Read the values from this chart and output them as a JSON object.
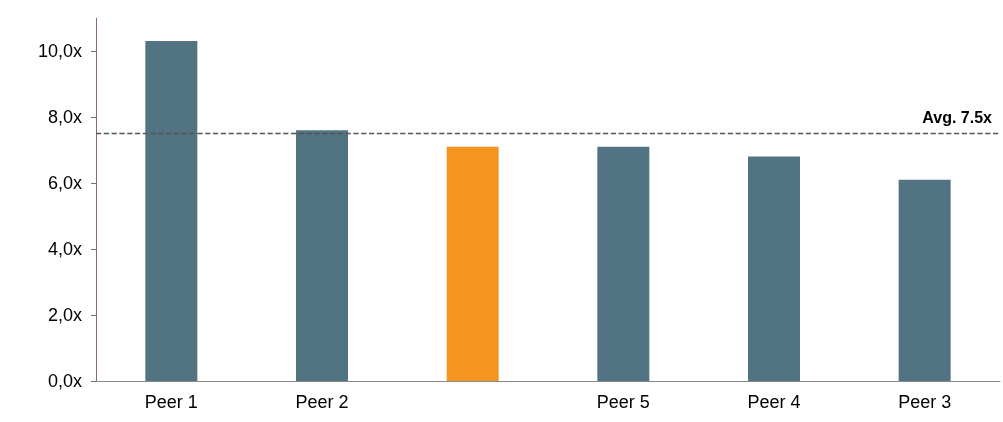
{
  "chart_data": {
    "type": "bar",
    "categories": [
      "Peer 1",
      "Peer 2",
      null,
      "Peer 5",
      "Peer 4",
      "Peer 3"
    ],
    "values": [
      10.3,
      7.6,
      7.1,
      7.1,
      6.8,
      6.1
    ],
    "colors": [
      "#527482",
      "#527482",
      "#f5951f",
      "#527482",
      "#527482",
      "#527482"
    ],
    "ylim": [
      0,
      11
    ],
    "yticks": [
      {
        "value": 0,
        "label": "0,0x"
      },
      {
        "value": 2,
        "label": "2,0x"
      },
      {
        "value": 4,
        "label": "4,0x"
      },
      {
        "value": 6,
        "label": "6,0x"
      },
      {
        "value": 8,
        "label": "8,0x"
      },
      {
        "value": 10,
        "label": "10,0x"
      }
    ],
    "ref_lines": [
      {
        "axis": "y",
        "value": 7.5,
        "label": "Avg. 7.5x",
        "color": "#555555",
        "line_style": "dashed"
      }
    ],
    "grid": false
  }
}
